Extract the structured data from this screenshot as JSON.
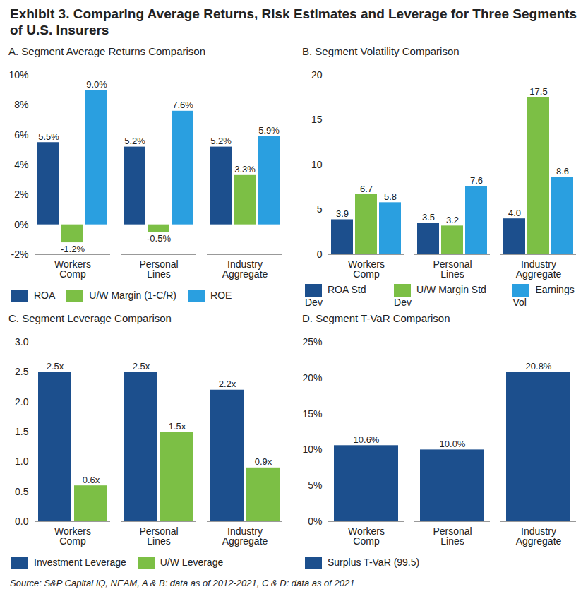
{
  "title": "Exhibit 3. Comparing Average Returns, Risk Estimates and Leverage for Three Segments of U.S. Insurers",
  "source": "Source: S&P Capital IQ, NEAM, A & B: data as of 2012-2021, C & D: data as of 2021",
  "chart_data": [
    {
      "type": "bar",
      "title": "A. Segment Average Returns Comparison",
      "categories": [
        "Workers Comp",
        "Personal Lines",
        "Industry Aggregate"
      ],
      "series": [
        {
          "name": "ROA",
          "color": "#1c4f8d",
          "values": [
            5.5,
            5.2,
            5.2
          ],
          "value_labels": [
            "5.5%",
            "5.2%",
            "5.2%"
          ]
        },
        {
          "name": "U/W Margin (1-C/R)",
          "color": "#7cbf45",
          "values": [
            -1.2,
            -0.5,
            3.3
          ],
          "value_labels": [
            "-1.2%",
            "-0.5%",
            "3.3%"
          ]
        },
        {
          "name": "ROE",
          "color": "#2a9fe0",
          "values": [
            9.0,
            7.6,
            5.9
          ],
          "value_labels": [
            "9.0%",
            "7.6%",
            "5.9%"
          ]
        }
      ],
      "ylim": [
        -2,
        10
      ],
      "yticks": [
        {
          "value": -2,
          "label": "-2%"
        },
        {
          "value": 0,
          "label": "0%"
        },
        {
          "value": 2,
          "label": "2%"
        },
        {
          "value": 4,
          "label": "4%"
        },
        {
          "value": 6,
          "label": "6%"
        },
        {
          "value": 8,
          "label": "8%"
        },
        {
          "value": 10,
          "label": "10%"
        }
      ],
      "grid": false,
      "data_labels": true,
      "legend": "bottom"
    },
    {
      "type": "bar",
      "title": "B. Segment Volatility Comparison",
      "categories": [
        "Workers Comp",
        "Personal Lines",
        "Industry Aggregate"
      ],
      "series": [
        {
          "name": "ROA Std Dev",
          "color": "#1c4f8d",
          "values": [
            3.9,
            3.5,
            4.0
          ],
          "value_labels": [
            "3.9",
            "3.5",
            "4.0"
          ]
        },
        {
          "name": "U/W Margin Std Dev",
          "color": "#7cbf45",
          "values": [
            6.7,
            3.2,
            17.5
          ]
        },
        {
          "name": "Earnings Vol",
          "color": "#2a9fe0",
          "values": [
            5.8,
            7.6,
            8.6
          ]
        }
      ],
      "ylim": [
        0,
        20
      ],
      "yticks": [
        0,
        5,
        10,
        15,
        20
      ],
      "grid": false,
      "data_labels": true,
      "legend": "bottom"
    },
    {
      "type": "bar",
      "title": "C. Segment Leverage Comparison",
      "categories": [
        "Workers Comp",
        "Personal Lines",
        "Industry Aggregate"
      ],
      "series": [
        {
          "name": "Investment Leverage",
          "color": "#1c4f8d",
          "values": [
            2.5,
            2.5,
            2.2
          ],
          "value_labels": [
            "2.5x",
            "2.5x",
            "2.2x"
          ]
        },
        {
          "name": "U/W Leverage",
          "color": "#7cbf45",
          "values": [
            0.6,
            1.5,
            0.9
          ],
          "value_labels": [
            "0.6x",
            "1.5x",
            "0.9x"
          ]
        }
      ],
      "ylim": [
        0,
        3
      ],
      "yticks": [
        {
          "value": 0,
          "label": "0.0"
        },
        {
          "value": 0.5,
          "label": "0.5"
        },
        {
          "value": 1,
          "label": "1.0"
        },
        {
          "value": 1.5,
          "label": "1.5"
        },
        {
          "value": 2,
          "label": "2.0"
        },
        {
          "value": 2.5,
          "label": "2.5"
        },
        {
          "value": 3,
          "label": "3.0"
        }
      ],
      "grid": false,
      "data_labels": true,
      "legend": "bottom"
    },
    {
      "type": "bar",
      "title": "D. Segment T-VaR Comparison",
      "categories": [
        "Workers Comp",
        "Personal Lines",
        "Industry Aggregate"
      ],
      "series": [
        {
          "name": "Surplus T-VaR (99.5)",
          "color": "#1c4f8d",
          "values": [
            10.6,
            10.0,
            20.8
          ],
          "value_labels": [
            "10.6%",
            "10.0%",
            "20.8%"
          ]
        }
      ],
      "ylim": [
        0,
        25
      ],
      "yticks": [
        {
          "value": 0,
          "label": "0%"
        },
        {
          "value": 5,
          "label": "5%"
        },
        {
          "value": 10,
          "label": "10%"
        },
        {
          "value": 15,
          "label": "15%"
        },
        {
          "value": 20,
          "label": "20%"
        },
        {
          "value": 25,
          "label": "25%"
        }
      ],
      "grid": false,
      "data_labels": true,
      "legend": "bottom"
    }
  ]
}
